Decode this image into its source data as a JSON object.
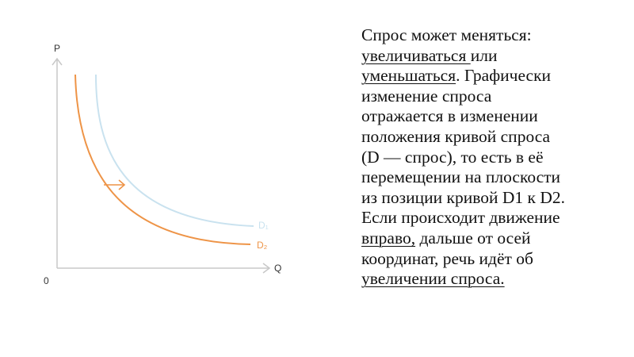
{
  "diagram": {
    "y_axis_label": "P",
    "x_axis_label": "Q",
    "origin_label": "0",
    "curves": [
      {
        "name": "D₁",
        "color": "#c9e2ef"
      },
      {
        "name": "D₂",
        "color": "#ee9447"
      }
    ],
    "arrow_color": "#ee9447",
    "axis_color": "#c8c8c8"
  },
  "text": {
    "line1": "Спрос может меняться:",
    "line2_u": "увеличиваться ",
    "line2_rest": "или",
    "line3_u": "уменьшаться",
    "line3_rest": ". Графически",
    "line4": "изменение спроса",
    "line5": "отражается в изменении",
    "line6": "положения кривой спроса",
    "line7": "(D —  спрос), то есть в её",
    "line8": "перемещении на плоскости",
    "line9": "из позиции кривой D1 к D2.",
    "line10": "Если происходит движение",
    "line11_u": "вправо,",
    "line11_rest": " дальше от осей",
    "line12": "координат, речь идёт об",
    "line13_u": "увеличении спроса."
  }
}
